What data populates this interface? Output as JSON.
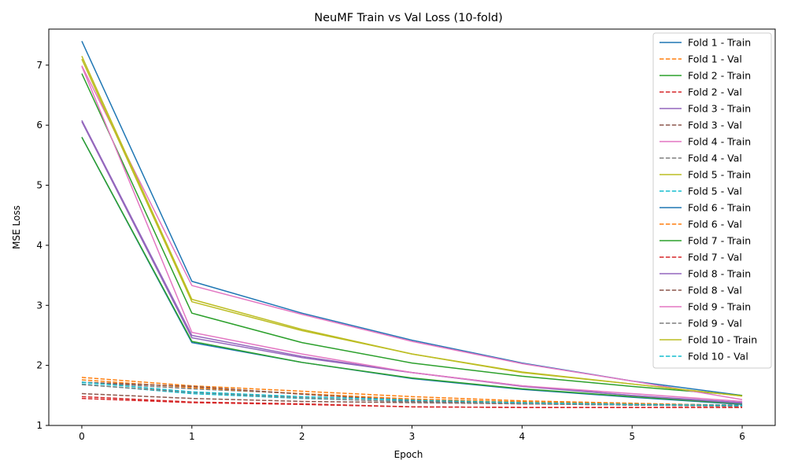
{
  "chart_data": {
    "type": "line",
    "title": "NeuMF Train vs Val Loss (10-fold)",
    "xlabel": "Epoch",
    "ylabel": "MSE Loss",
    "xlim": [
      -0.3,
      6.3
    ],
    "ylim": [
      1.0,
      7.6
    ],
    "x": [
      0,
      1,
      2,
      3,
      4,
      5,
      6
    ],
    "xticks": [
      "0",
      "1",
      "2",
      "3",
      "4",
      "5",
      "6"
    ],
    "yticks": [
      "1",
      "2",
      "3",
      "4",
      "5",
      "6",
      "7"
    ],
    "grid": false,
    "legend_position": "top-right",
    "series": [
      {
        "name": "Fold 1 - Train",
        "color": "#1f77b4",
        "style": "solid",
        "values": [
          7.4,
          3.4,
          2.87,
          2.42,
          2.04,
          1.74,
          1.5
        ]
      },
      {
        "name": "Fold 1 - Val",
        "color": "#ff7f0e",
        "style": "dashed",
        "values": [
          1.8,
          1.66,
          1.57,
          1.48,
          1.41,
          1.37,
          1.33
        ]
      },
      {
        "name": "Fold 2 - Train",
        "color": "#2ca02c",
        "style": "solid",
        "values": [
          6.86,
          2.87,
          2.38,
          2.04,
          1.82,
          1.65,
          1.5
        ]
      },
      {
        "name": "Fold 2 - Val",
        "color": "#d62728",
        "style": "dashed",
        "values": [
          1.48,
          1.39,
          1.36,
          1.31,
          1.3,
          1.3,
          1.3
        ]
      },
      {
        "name": "Fold 3 - Train",
        "color": "#9467bd",
        "style": "solid",
        "values": [
          6.08,
          2.5,
          2.15,
          1.88,
          1.65,
          1.5,
          1.38
        ]
      },
      {
        "name": "Fold 3 - Val",
        "color": "#8c564b",
        "style": "dashed",
        "values": [
          1.53,
          1.45,
          1.4,
          1.38,
          1.36,
          1.35,
          1.33
        ]
      },
      {
        "name": "Fold 4 - Train",
        "color": "#e377c2",
        "style": "solid",
        "values": [
          6.99,
          3.33,
          2.85,
          2.4,
          2.03,
          1.74,
          1.43
        ]
      },
      {
        "name": "Fold 4 - Val",
        "color": "#7f7f7f",
        "style": "dashed",
        "values": [
          1.72,
          1.61,
          1.53,
          1.43,
          1.39,
          1.36,
          1.34
        ]
      },
      {
        "name": "Fold 5 - Train",
        "color": "#bcbd22",
        "style": "solid",
        "values": [
          7.15,
          3.1,
          2.6,
          2.19,
          1.89,
          1.69,
          1.49
        ]
      },
      {
        "name": "Fold 5 - Val",
        "color": "#17becf",
        "style": "dashed",
        "values": [
          1.69,
          1.53,
          1.45,
          1.4,
          1.37,
          1.34,
          1.33
        ]
      },
      {
        "name": "Fold 6 - Train",
        "color": "#1f77b4",
        "style": "solid",
        "values": [
          5.8,
          2.38,
          2.05,
          1.78,
          1.6,
          1.47,
          1.35
        ]
      },
      {
        "name": "Fold 6 - Val",
        "color": "#ff7f0e",
        "style": "dashed",
        "values": [
          1.76,
          1.63,
          1.53,
          1.44,
          1.39,
          1.36,
          1.33
        ]
      },
      {
        "name": "Fold 7 - Train",
        "color": "#2ca02c",
        "style": "solid",
        "values": [
          5.8,
          2.4,
          2.05,
          1.79,
          1.61,
          1.48,
          1.36
        ]
      },
      {
        "name": "Fold 7 - Val",
        "color": "#d62728",
        "style": "dashed",
        "values": [
          1.45,
          1.38,
          1.35,
          1.31,
          1.3,
          1.3,
          1.3
        ]
      },
      {
        "name": "Fold 8 - Train",
        "color": "#9467bd",
        "style": "solid",
        "values": [
          6.06,
          2.46,
          2.13,
          1.88,
          1.66,
          1.5,
          1.37
        ]
      },
      {
        "name": "Fold 8 - Val",
        "color": "#8c564b",
        "style": "dashed",
        "values": [
          1.72,
          1.65,
          1.52,
          1.41,
          1.36,
          1.34,
          1.32
        ]
      },
      {
        "name": "Fold 9 - Train",
        "color": "#e377c2",
        "style": "solid",
        "values": [
          6.98,
          2.55,
          2.19,
          1.88,
          1.66,
          1.53,
          1.4
        ]
      },
      {
        "name": "Fold 9 - Val",
        "color": "#7f7f7f",
        "style": "dashed",
        "values": [
          1.68,
          1.55,
          1.46,
          1.39,
          1.36,
          1.34,
          1.33
        ]
      },
      {
        "name": "Fold 10 - Train",
        "color": "#bcbd22",
        "style": "solid",
        "values": [
          7.1,
          3.06,
          2.58,
          2.19,
          1.88,
          1.69,
          1.49
        ]
      },
      {
        "name": "Fold 10 - Val",
        "color": "#17becf",
        "style": "dashed",
        "values": [
          1.72,
          1.56,
          1.48,
          1.42,
          1.38,
          1.35,
          1.33
        ]
      }
    ]
  }
}
